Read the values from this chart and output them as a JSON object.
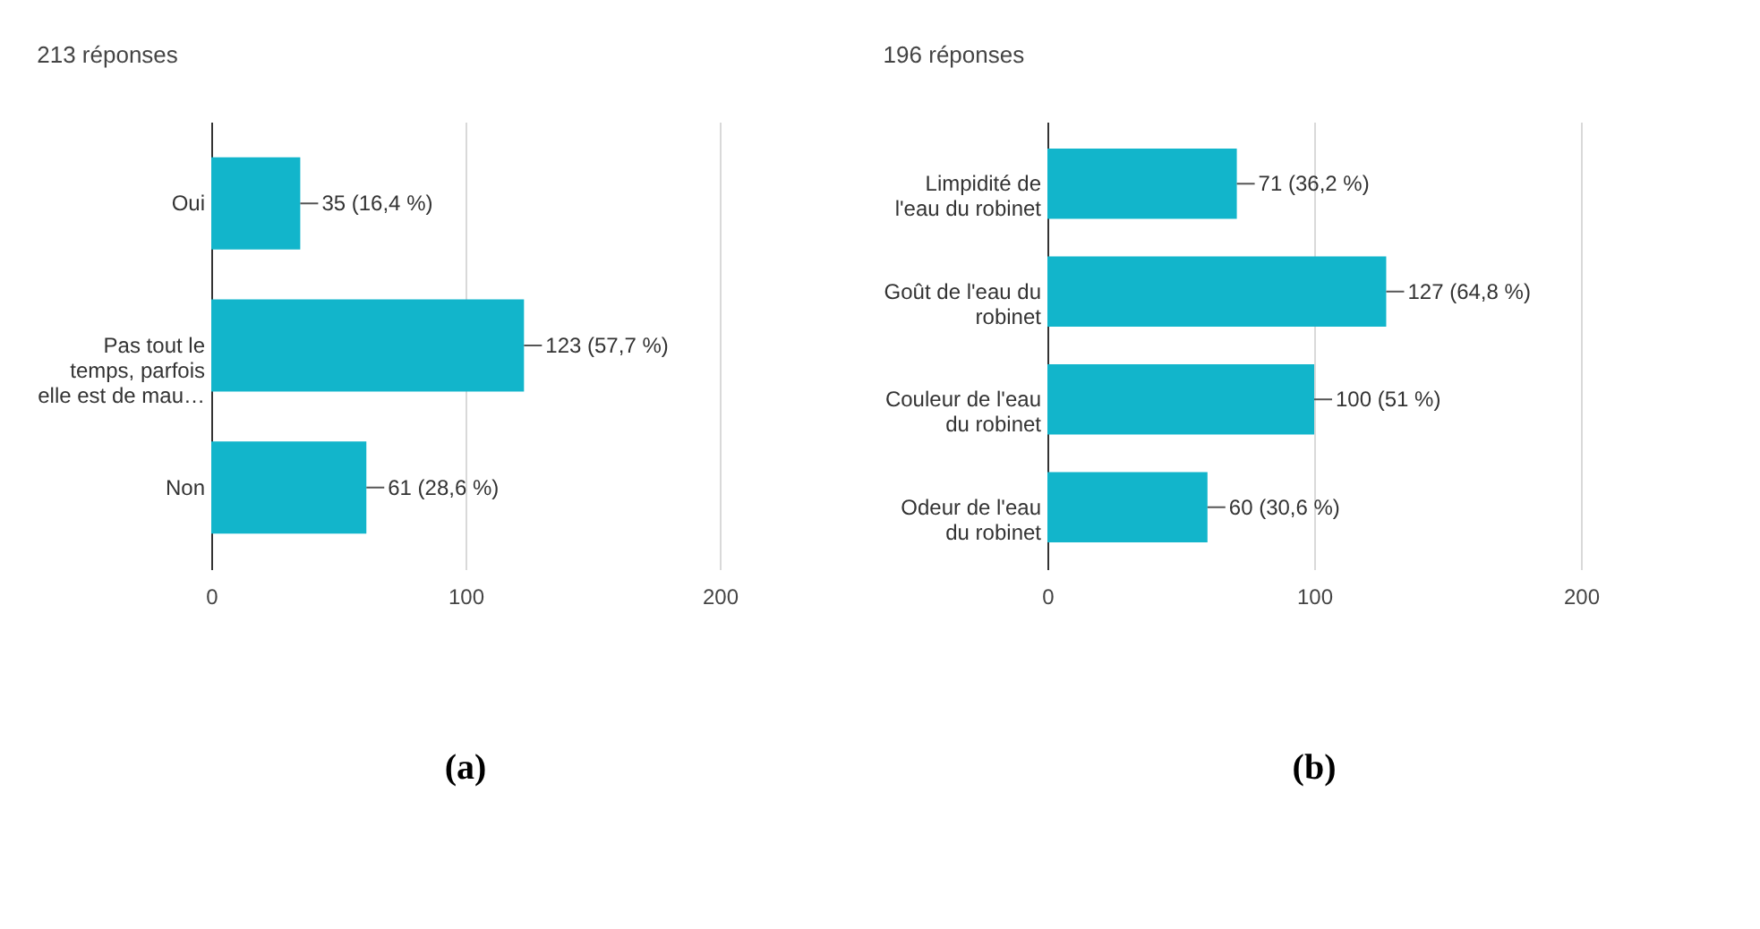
{
  "chart_data": [
    {
      "type": "bar",
      "orientation": "horizontal",
      "title": "213 réponses",
      "categories": [
        "Oui",
        "Pas tout le temps, parfois elle est de mau…",
        "Non"
      ],
      "values": [
        35,
        123,
        61
      ],
      "color": "#12b5cb",
      "value_labels": [
        "35 (16,4 %)",
        "123 (57,7 %)",
        "61 (28,6 %)"
      ],
      "xlim": [
        0,
        200
      ],
      "xticks": [
        0,
        100,
        200
      ],
      "grid": "x",
      "annotations": [
        "(a)"
      ]
    },
    {
      "type": "bar",
      "orientation": "horizontal",
      "title": "196 réponses",
      "categories": [
        "Limpidité de l'eau du robinet",
        "Goût de l'eau du robinet",
        "Couleur de l'eau du robinet",
        "Odeur de l'eau du robinet"
      ],
      "values": [
        71,
        127,
        100,
        60
      ],
      "color": "#12b5cb",
      "value_labels": [
        "71 (36,2 %)",
        "127 (64,8 %)",
        "100 (51 %)",
        "60 (30,6 %)"
      ],
      "xlim": [
        0,
        200
      ],
      "xticks": [
        0,
        100,
        200
      ],
      "grid": "x",
      "annotations": [
        "(b)"
      ]
    }
  ]
}
